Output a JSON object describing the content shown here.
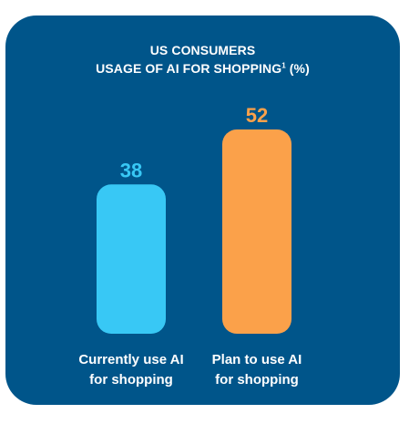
{
  "title": {
    "line1": "US CONSUMERS",
    "line2": "USAGE OF AI FOR SHOPPING",
    "footnote_marker": "1",
    "unit": "(%)"
  },
  "colors": {
    "background": "#00558a",
    "series": [
      "#38c8f5",
      "#fba14a"
    ],
    "text": "#ffffff"
  },
  "chart_data": {
    "type": "bar",
    "title": "US CONSUMERS USAGE OF AI FOR SHOPPING¹ (%)",
    "categories": [
      [
        "Currently use AI",
        "for shopping"
      ],
      [
        "Plan to use AI",
        "for shopping"
      ]
    ],
    "values": [
      38,
      52
    ],
    "ylim": [
      0,
      52
    ],
    "grid": false,
    "legend": "none"
  }
}
